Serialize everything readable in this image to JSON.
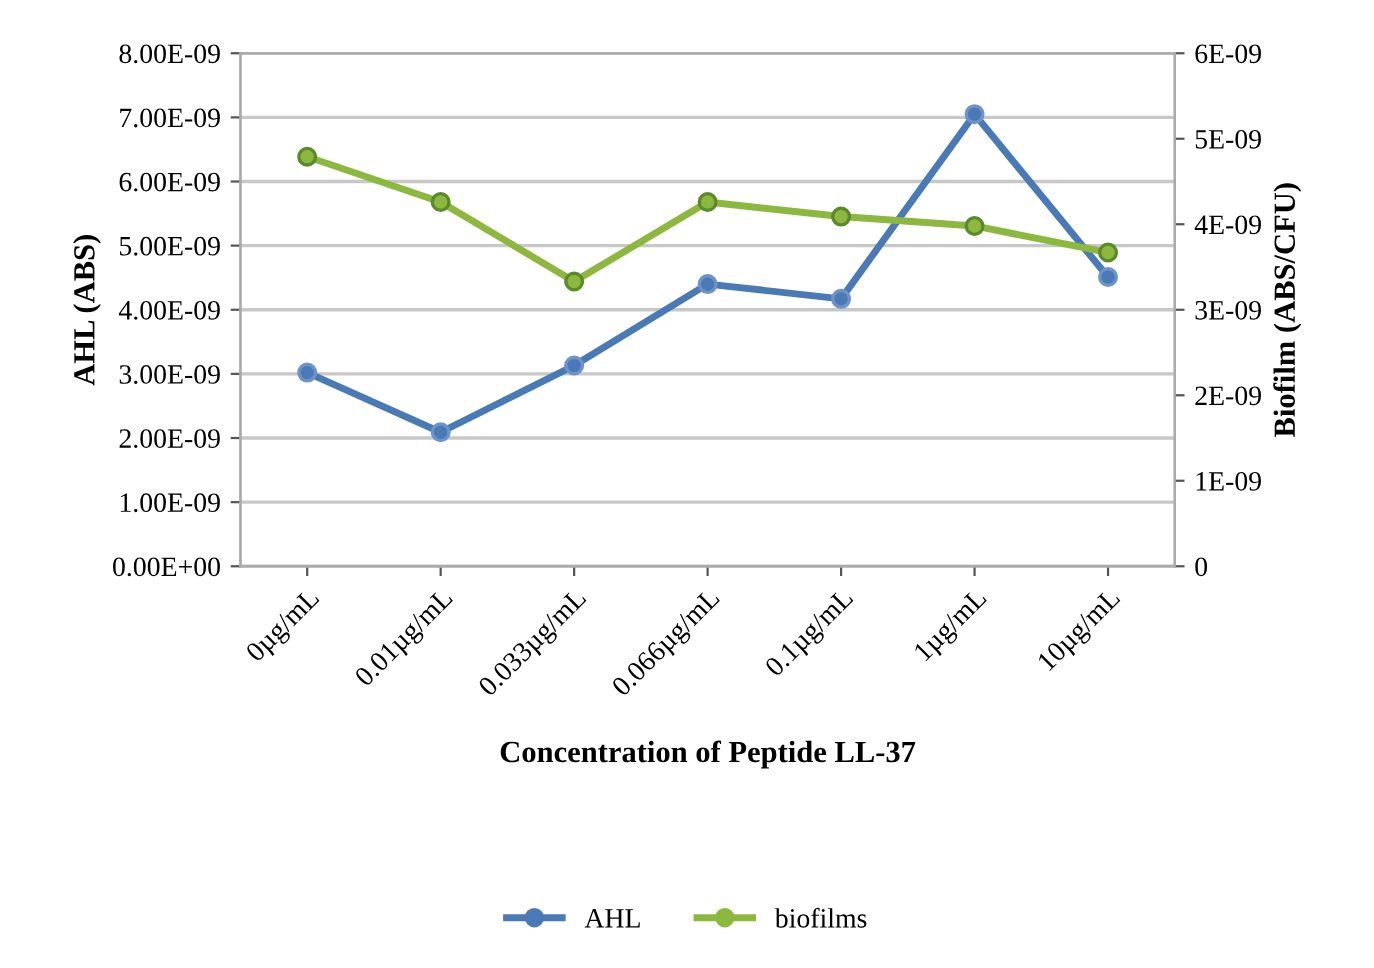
{
  "chart_data": {
    "type": "line",
    "categories": [
      "0µg/mL",
      "0.01µg/mL",
      "0.033µg/mL",
      "0.066µg/mL",
      "0.1µg/mL",
      "1µg/mL",
      "10µg/mL"
    ],
    "series": [
      {
        "name": "AHL",
        "color": "#4a7ab5",
        "values": [
          3.02e-09,
          2.09e-09,
          3.13e-09,
          4.4e-09,
          4.17e-09,
          7.05e-09,
          4.51e-09
        ]
      },
      {
        "name": "biofilms",
        "color": "#8cb83f",
        "axis": "y2",
        "values": [
          4.79e-09,
          4.26e-09,
          3.33e-09,
          4.26e-09,
          4.09e-09,
          3.98e-09,
          3.67e-09
        ]
      }
    ],
    "xlabel": "Concentration of Peptide LL-37",
    "ylabel": "AHL (ABS)",
    "y2label": "Biofilm (ABS/CFU)",
    "ylim": [
      0,
      8e-09
    ],
    "yticks": [
      {
        "value": 0,
        "label": "0.00E+00"
      },
      {
        "value": 1e-09,
        "label": "1.00E-09"
      },
      {
        "value": 2e-09,
        "label": "2.00E-09"
      },
      {
        "value": 3e-09,
        "label": "3.00E-09"
      },
      {
        "value": 4e-09,
        "label": "4.00E-09"
      },
      {
        "value": 5e-09,
        "label": "5.00E-09"
      },
      {
        "value": 6e-09,
        "label": "6.00E-09"
      },
      {
        "value": 7e-09,
        "label": "7.00E-09"
      },
      {
        "value": 8e-09,
        "label": "8.00E-09"
      }
    ],
    "y2lim": [
      0,
      6e-09
    ],
    "y2ticks": [
      0,
      {
        "value": 1e-09,
        "label": "1E-09"
      },
      {
        "value": 2e-09,
        "label": "2E-09"
      },
      {
        "value": 3e-09,
        "label": "3E-09"
      },
      {
        "value": 4e-09,
        "label": "4E-09"
      },
      {
        "value": 5e-09,
        "label": "5E-09"
      },
      {
        "value": 6e-09,
        "label": "6E-09"
      }
    ],
    "grid": "y",
    "legend": "bottom",
    "marker": "circle",
    "line_style": "solid"
  }
}
